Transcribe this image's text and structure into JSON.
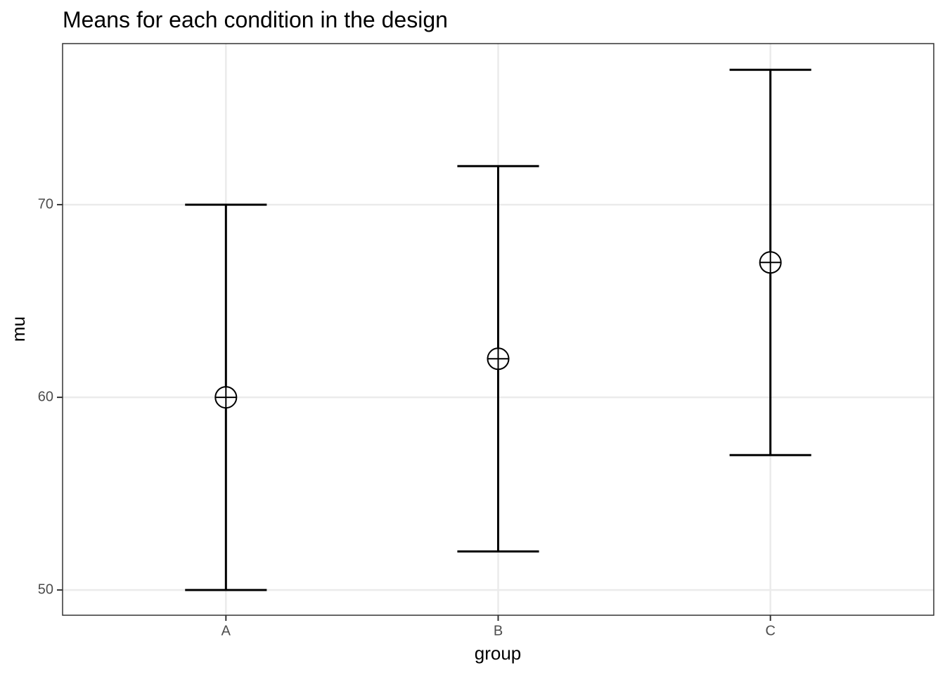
{
  "chart_data": {
    "type": "errorbar",
    "title": "Means for each condition in the design",
    "x_label": "group",
    "y_label": "mu",
    "categories": [
      "A",
      "B",
      "C"
    ],
    "values": [
      60,
      62,
      67
    ],
    "errors": [
      10,
      10,
      10
    ],
    "color": "#000000",
    "ylim": [
      48.69,
      78.36
    ],
    "yticks": [
      50,
      60,
      70
    ],
    "grid": true
  }
}
